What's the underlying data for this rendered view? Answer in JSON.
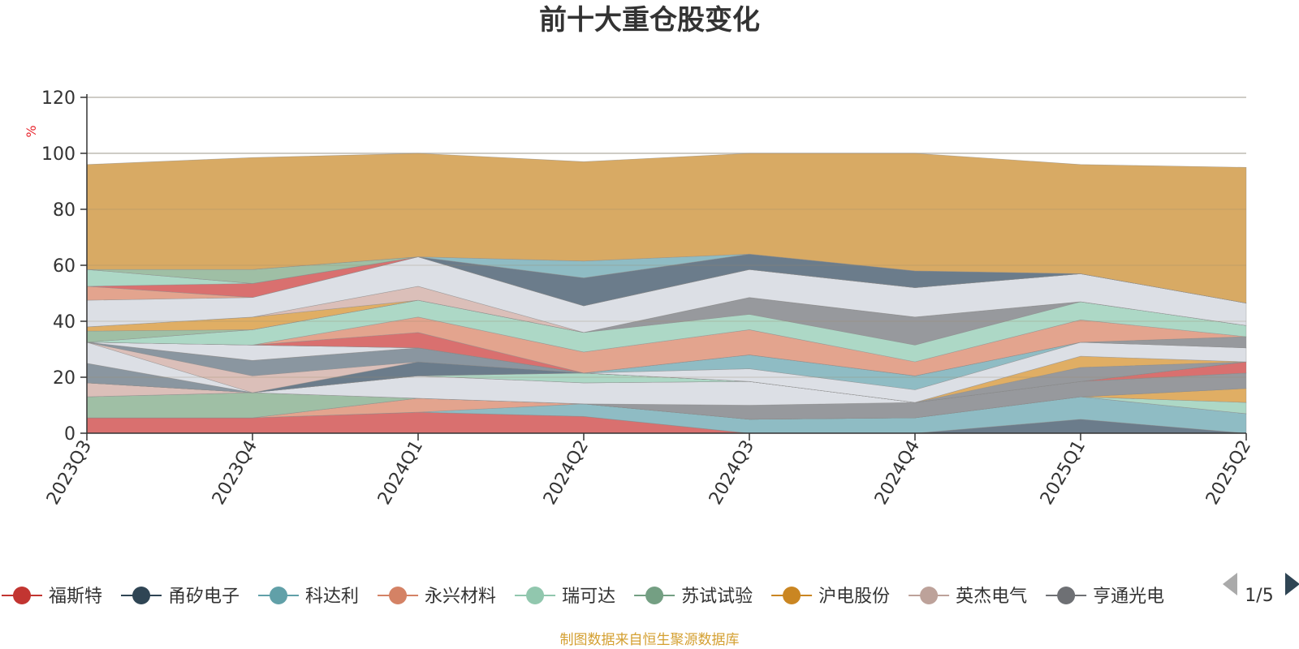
{
  "chart_data": {
    "type": "area",
    "title": "前十大重仓股变化",
    "ylabel": "%",
    "ylim": [
      0,
      120
    ],
    "yticks": [
      0,
      20,
      40,
      60,
      80,
      100,
      120
    ],
    "categories": [
      "2023Q3",
      "2023Q4",
      "2024Q1",
      "2024Q2",
      "2024Q3",
      "2024Q4",
      "2025Q1",
      "2025Q2"
    ],
    "stacked": true,
    "series": [
      {
        "name": "福斯特",
        "color": "#d9706f",
        "values": [
          5.5,
          5.5,
          7.5,
          6,
          0,
          0,
          0,
          0
        ]
      },
      {
        "name": "甬矽电子",
        "color": "#6b7c8b",
        "values": [
          0,
          0,
          0,
          0,
          0,
          0,
          5,
          0
        ]
      },
      {
        "name": "科达利",
        "color": "#8fbcc4",
        "values": [
          0,
          0,
          0,
          4.5,
          5,
          5.5,
          8,
          7
        ]
      },
      {
        "name": "永兴材料",
        "color": "#e3a48e",
        "values": [
          0,
          0,
          5,
          0,
          0,
          0,
          0,
          0
        ]
      },
      {
        "name": "瑞可达",
        "color": "#add8c6",
        "values": [
          0,
          0,
          0,
          0,
          0,
          0,
          0,
          4
        ]
      },
      {
        "name": "苏试试验",
        "color": "#9fbfa5",
        "values": [
          7.5,
          9,
          0,
          0,
          0,
          0,
          0,
          0
        ]
      },
      {
        "name": "沪电股份",
        "color": "#e0ae64",
        "values": [
          0,
          0,
          0,
          0,
          0,
          0,
          0,
          5
        ]
      },
      {
        "name": "英杰电气",
        "color": "#dbbfb9",
        "values": [
          5,
          0,
          0,
          0,
          0,
          0,
          0,
          0
        ]
      },
      {
        "name": "亨通光电",
        "color": "#97999d",
        "values": [
          0,
          0,
          0,
          0,
          5,
          5.5,
          5.5,
          5.5
        ]
      },
      {
        "name": "",
        "color": "#dcdfe5",
        "values": [
          0,
          0,
          8,
          7.5,
          8.5,
          0,
          0,
          0
        ]
      },
      {
        "name": "",
        "color": "#d9706f",
        "values": [
          0,
          0,
          0,
          0,
          0,
          0,
          0,
          4
        ]
      },
      {
        "name": "",
        "color": "#add8c6",
        "values": [
          0,
          0,
          0,
          3.5,
          0,
          0,
          0,
          0
        ]
      },
      {
        "name": "",
        "color": "#8a96a0",
        "values": [
          7,
          0,
          0,
          0,
          0,
          0,
          0,
          0
        ]
      },
      {
        "name": "",
        "color": "#6b7c8b",
        "values": [
          0,
          0,
          5,
          0,
          0,
          0,
          0,
          0
        ]
      },
      {
        "name": "",
        "color": "#dcdfe5",
        "values": [
          7.5,
          0,
          0,
          0,
          0,
          0,
          0,
          0
        ]
      },
      {
        "name": "",
        "color": "#dbbfb9",
        "values": [
          0,
          6,
          0,
          0,
          0,
          0,
          0,
          0
        ]
      },
      {
        "name": "",
        "color": "#8a96a0",
        "values": [
          0,
          5.5,
          5,
          0,
          0,
          0,
          0,
          0
        ]
      },
      {
        "name": "",
        "color": "#97999d",
        "values": [
          0,
          0,
          0,
          0,
          0,
          0,
          5,
          0
        ]
      },
      {
        "name": "",
        "color": "#e0ae64",
        "values": [
          0,
          0,
          0,
          0,
          0,
          0,
          4,
          0
        ]
      },
      {
        "name": "",
        "color": "#dcdfe5",
        "values": [
          0,
          5.5,
          0,
          0,
          4.5,
          4.5,
          5,
          5
        ]
      },
      {
        "name": "",
        "color": "#8fbcc4",
        "values": [
          0,
          0,
          0,
          0,
          5,
          5,
          0,
          0
        ]
      },
      {
        "name": "",
        "color": "#97999d",
        "values": [
          0,
          0,
          0,
          0,
          0,
          0,
          0,
          4
        ]
      },
      {
        "name": "",
        "color": "#d9706f",
        "values": [
          0,
          0,
          5.5,
          0,
          0,
          0,
          0,
          0
        ]
      },
      {
        "name": "",
        "color": "#e3a48e",
        "values": [
          0,
          0,
          5.5,
          7.5,
          9,
          5,
          8,
          0
        ]
      },
      {
        "name": "",
        "color": "#add8c6",
        "values": [
          0,
          5.5,
          6,
          7,
          5.5,
          6,
          6.5,
          4
        ]
      },
      {
        "name": "",
        "color": "#97999d",
        "values": [
          0,
          0,
          0,
          0,
          6,
          10,
          0,
          0
        ]
      },
      {
        "name": "",
        "color": "#9fbfa5",
        "values": [
          4,
          0,
          0,
          0,
          0,
          0,
          0,
          0
        ]
      },
      {
        "name": "",
        "color": "#e0ae64",
        "values": [
          1.5,
          4.5,
          0,
          0,
          0,
          0,
          0,
          0
        ]
      },
      {
        "name": "",
        "color": "#dbbfb9",
        "values": [
          0,
          0,
          5,
          0,
          0,
          0,
          0,
          0
        ]
      },
      {
        "name": "",
        "color": "#dcdfe5",
        "values": [
          9.5,
          7,
          10.5,
          9.5,
          10,
          10.5,
          10,
          8
        ]
      },
      {
        "name": "",
        "color": "#e3a48e",
        "values": [
          5,
          0,
          0,
          0,
          0,
          0,
          0,
          0
        ]
      },
      {
        "name": "",
        "color": "#d9706f",
        "values": [
          0,
          5,
          0,
          0,
          0,
          0,
          0,
          0
        ]
      },
      {
        "name": "",
        "color": "#add8c6",
        "values": [
          6,
          0,
          0,
          0,
          0,
          0,
          0,
          0
        ]
      },
      {
        "name": "",
        "color": "#6b7c8b",
        "values": [
          0,
          0,
          0,
          10,
          5.5,
          6,
          0,
          0
        ]
      },
      {
        "name": "",
        "color": "#9fbfa5",
        "values": [
          0,
          5,
          0,
          0,
          0,
          0,
          0,
          0
        ]
      },
      {
        "name": "",
        "color": "#8fbcc4",
        "values": [
          0,
          0,
          0,
          6,
          0,
          0,
          0,
          0
        ]
      },
      {
        "name": "",
        "color": "#d8aa64",
        "values": [
          37.5,
          40,
          37,
          35.5,
          36,
          42,
          39,
          48.5
        ]
      }
    ],
    "legend": {
      "position": "bottom",
      "page": "1/5",
      "items": [
        {
          "name": "福斯特",
          "color": "#c23531"
        },
        {
          "name": "甬矽电子",
          "color": "#2f4554"
        },
        {
          "name": "科达利",
          "color": "#61a0a8"
        },
        {
          "name": "永兴材料",
          "color": "#d48265"
        },
        {
          "name": "瑞可达",
          "color": "#91c7ae"
        },
        {
          "name": "苏试试验",
          "color": "#749f83"
        },
        {
          "name": "沪电股份",
          "color": "#ca8622"
        },
        {
          "name": "英杰电气",
          "color": "#bda29a"
        },
        {
          "name": "亨通光电",
          "color": "#6e7074"
        }
      ]
    },
    "source": "制图数据来自恒生聚源数据库",
    "grid": true
  }
}
